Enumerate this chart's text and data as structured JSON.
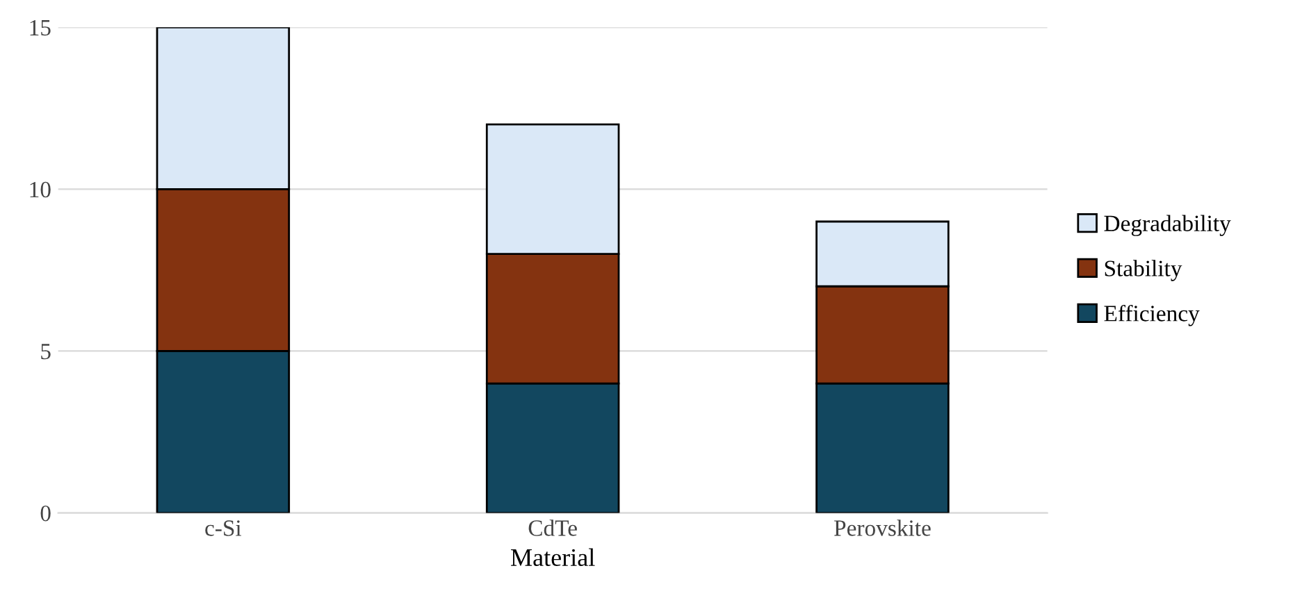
{
  "chart_data": {
    "type": "bar",
    "stacked": true,
    "xlabel": "Material",
    "categories": [
      "c-Si",
      "CdTe",
      "Perovskite"
    ],
    "series": [
      {
        "name": "Efficiency",
        "color": "#12475f",
        "values": [
          5,
          4,
          4
        ]
      },
      {
        "name": "Stability",
        "color": "#843310",
        "values": [
          5,
          4,
          3
        ]
      },
      {
        "name": "Degradability",
        "color": "#dae8f7",
        "values": [
          5,
          4,
          2
        ]
      }
    ],
    "ylim": [
      0,
      15
    ],
    "yticks": [
      0,
      5,
      10,
      15
    ],
    "grid": "y",
    "legend": "right"
  }
}
